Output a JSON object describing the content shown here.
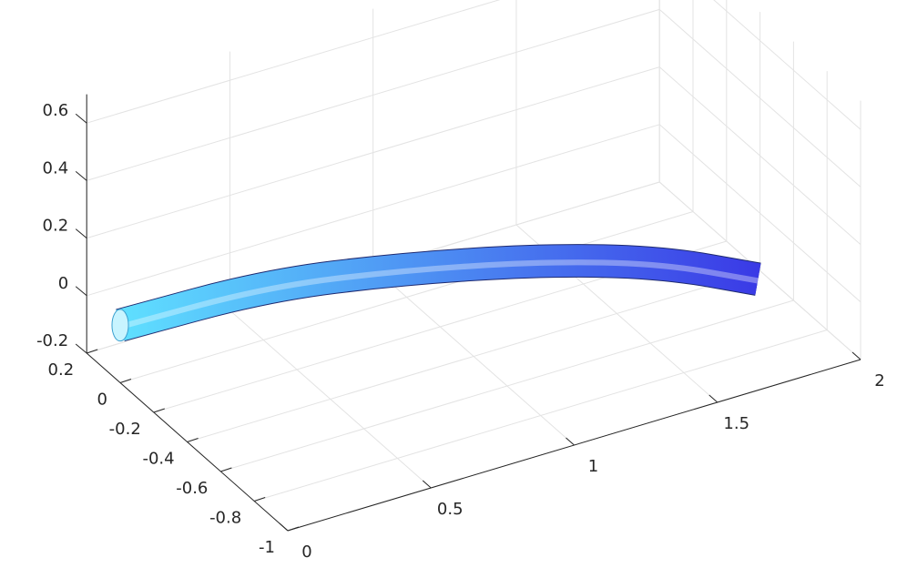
{
  "chart_data": {
    "type": "tube3d",
    "xlim": [
      0,
      2
    ],
    "xticks": [
      0,
      0.5,
      1,
      1.5,
      2
    ],
    "ylim": [
      -1,
      0.2
    ],
    "yticks": [
      0.2,
      0,
      -0.2,
      -0.4,
      -0.6,
      -0.8,
      -1
    ],
    "zlim": [
      -0.2,
      0.7
    ],
    "zticks": [
      -0.2,
      0,
      0.2,
      0.4,
      0.6
    ],
    "grid": true,
    "series": [
      {
        "x": [
          0,
          0.5,
          0.9,
          1.3,
          1.6,
          1.8
        ],
        "y": [
          0,
          -0.02,
          -0.14,
          -0.31,
          -0.5,
          -0.73
        ],
        "z": [
          0,
          0,
          0,
          0,
          0,
          0
        ],
        "radius": 0.05,
        "colors": [
          "#5fe0ff",
          "#3a3ae6"
        ]
      }
    ]
  }
}
